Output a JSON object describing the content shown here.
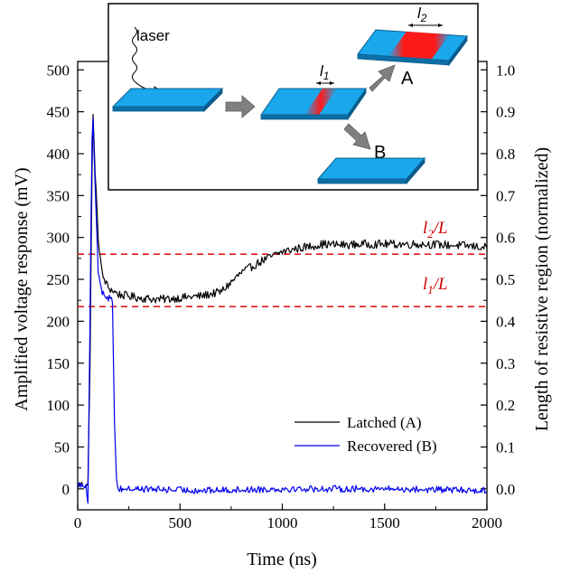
{
  "colors": {
    "latched": "#000000",
    "recovered": "#0000ee",
    "reference": "#e41a1c",
    "strip": "#1aa7ec",
    "strip_edge": "#0a5f8f",
    "hotspot": "#ff1a1a",
    "arrow": "#808080"
  },
  "chart_data": {
    "type": "line",
    "xlabel": "Time (ns)",
    "ylabel_left": "Amplified voltage response (mV)",
    "ylabel_right": "Length of resistive region (normalized)",
    "xlim": [
      0,
      2000
    ],
    "ylim_left": [
      -25,
      510
    ],
    "ylim_right": [
      -0.05,
      1.02
    ],
    "x_ticks": [
      "0",
      "500",
      "1000",
      "1500",
      "2000"
    ],
    "y_left_ticks": [
      "0",
      "50",
      "100",
      "150",
      "200",
      "250",
      "300",
      "350",
      "400",
      "450",
      "500"
    ],
    "y_right_ticks": [
      "0.0",
      "0.1",
      "0.2",
      "0.3",
      "0.4",
      "0.5",
      "0.6",
      "0.7",
      "0.8",
      "0.9",
      "1.0"
    ],
    "legend_placement": "bottom-right",
    "series": [
      {
        "name": "Latched (A)",
        "x": [
          0,
          50,
          60,
          70,
          75,
          85,
          100,
          120,
          150,
          200,
          300,
          400,
          500,
          600,
          700,
          800,
          900,
          1000,
          1100,
          1200,
          1300,
          1400,
          1500,
          1600,
          1700,
          1800,
          1900,
          2000
        ],
        "y": [
          5,
          5,
          150,
          380,
          445,
          380,
          300,
          255,
          240,
          232,
          228,
          226,
          228,
          230,
          235,
          258,
          272,
          283,
          288,
          292,
          291,
          292,
          292,
          292,
          292,
          291,
          290,
          288
        ],
        "noise": 5
      },
      {
        "name": "Recovered (B)",
        "x": [
          0,
          40,
          50,
          60,
          70,
          75,
          85,
          100,
          120,
          150,
          170,
          180,
          190,
          200,
          300,
          600,
          1000,
          1500,
          2000
        ],
        "y": [
          5,
          5,
          -15,
          200,
          420,
          440,
          360,
          260,
          235,
          228,
          225,
          80,
          10,
          0,
          0,
          -2,
          0,
          0,
          -2
        ],
        "noise": 4
      }
    ],
    "reference_lines": [
      {
        "label_base": "l",
        "label_sub": "2",
        "label_tail": "/L",
        "y_normalized": 0.56
      },
      {
        "label_base": "l",
        "label_sub": "1",
        "label_tail": "/L",
        "y_normalized": 0.435
      }
    ]
  },
  "inset": {
    "laser_label": "laser",
    "l1_base": "l",
    "l1_sub": "1",
    "l2_base": "l",
    "l2_sub": "2",
    "label_a": "A",
    "label_b": "B"
  }
}
